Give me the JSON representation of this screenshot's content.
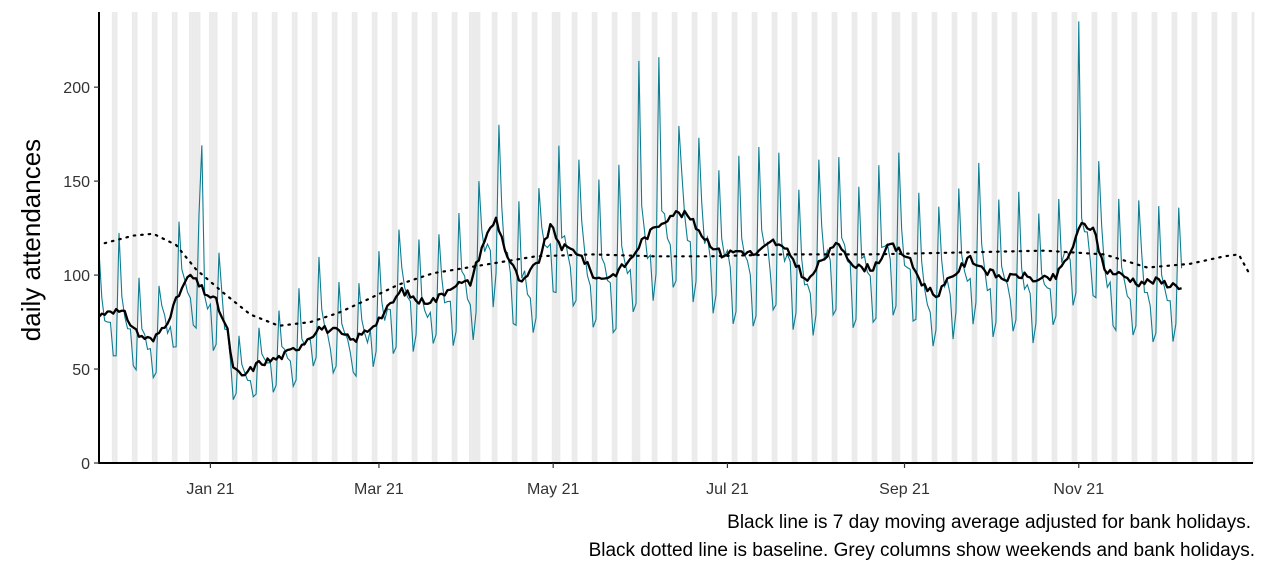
{
  "chart_data": {
    "type": "line",
    "ylabel": "daily attendances",
    "xlabel": "",
    "ylim": [
      0,
      240
    ],
    "yticks": [
      0,
      50,
      100,
      150,
      200
    ],
    "x_range": [
      "2020-11-23",
      "2022-01-01"
    ],
    "xticks": [
      {
        "date": "2021-01-01",
        "label": "Jan 21"
      },
      {
        "date": "2021-03-01",
        "label": "Mar 21"
      },
      {
        "date": "2021-05-01",
        "label": "May 21"
      },
      {
        "date": "2021-07-01",
        "label": "Jul 21"
      },
      {
        "date": "2021-09-01",
        "label": "Sep 21"
      },
      {
        "date": "2021-11-01",
        "label": "Nov 21"
      }
    ],
    "bank_holidays": [
      "2020-12-25",
      "2020-12-28",
      "2021-01-01",
      "2021-04-02",
      "2021-04-05",
      "2021-05-03",
      "2021-05-31",
      "2021-08-30"
    ],
    "series": [
      {
        "role": "daily attendances",
        "color": "#0e7c91",
        "start": "2020-11-23",
        "end": "2021-12-07",
        "weekday_profile": [
          1.45,
          1.1,
          1.0,
          0.96,
          0.92,
          0.7,
          0.75
        ],
        "spikes": [
          {
            "date": "2020-12-29",
            "value": 169
          },
          {
            "date": "2021-11-01",
            "value": 235
          },
          {
            "date": "2021-06-07",
            "value": 216
          },
          {
            "date": "2021-05-31",
            "value": 214
          }
        ]
      },
      {
        "role": "7 day moving average adjusted for bank holidays",
        "color": "#000000",
        "start": "2020-11-23",
        "end": "2021-12-07",
        "points": [
          [
            "2020-11-23",
            78
          ],
          [
            "2020-11-27",
            82
          ],
          [
            "2020-12-02",
            79
          ],
          [
            "2020-12-07",
            68
          ],
          [
            "2020-12-12",
            65
          ],
          [
            "2020-12-17",
            76
          ],
          [
            "2020-12-22",
            93
          ],
          [
            "2020-12-25",
            100
          ],
          [
            "2020-12-30",
            91
          ],
          [
            "2021-01-03",
            86
          ],
          [
            "2021-01-07",
            70
          ],
          [
            "2021-01-09",
            50
          ],
          [
            "2021-01-12",
            46
          ],
          [
            "2021-01-18",
            53
          ],
          [
            "2021-01-25",
            56
          ],
          [
            "2021-02-01",
            62
          ],
          [
            "2021-02-08",
            72
          ],
          [
            "2021-02-14",
            70
          ],
          [
            "2021-02-20",
            65
          ],
          [
            "2021-02-26",
            72
          ],
          [
            "2021-03-03",
            80
          ],
          [
            "2021-03-09",
            92
          ],
          [
            "2021-03-15",
            86
          ],
          [
            "2021-03-21",
            87
          ],
          [
            "2021-03-27",
            95
          ],
          [
            "2021-04-02",
            96
          ],
          [
            "2021-04-07",
            119
          ],
          [
            "2021-04-11",
            130
          ],
          [
            "2021-04-15",
            110
          ],
          [
            "2021-04-20",
            95
          ],
          [
            "2021-04-26",
            108
          ],
          [
            "2021-04-30",
            126
          ],
          [
            "2021-05-04",
            115
          ],
          [
            "2021-05-10",
            112
          ],
          [
            "2021-05-16",
            98
          ],
          [
            "2021-05-22",
            100
          ],
          [
            "2021-05-28",
            108
          ],
          [
            "2021-06-01",
            118
          ],
          [
            "2021-06-07",
            127
          ],
          [
            "2021-06-12",
            133
          ],
          [
            "2021-06-17",
            132
          ],
          [
            "2021-06-23",
            120
          ],
          [
            "2021-06-29",
            111
          ],
          [
            "2021-07-05",
            113
          ],
          [
            "2021-07-11",
            111
          ],
          [
            "2021-07-17",
            118
          ],
          [
            "2021-07-23",
            111
          ],
          [
            "2021-07-29",
            96
          ],
          [
            "2021-08-03",
            108
          ],
          [
            "2021-08-09",
            117
          ],
          [
            "2021-08-15",
            104
          ],
          [
            "2021-08-21",
            104
          ],
          [
            "2021-08-27",
            116
          ],
          [
            "2021-09-02",
            110
          ],
          [
            "2021-09-07",
            96
          ],
          [
            "2021-09-12",
            89
          ],
          [
            "2021-09-18",
            100
          ],
          [
            "2021-09-24",
            109
          ],
          [
            "2021-09-30",
            102
          ],
          [
            "2021-10-06",
            98
          ],
          [
            "2021-10-12",
            100
          ],
          [
            "2021-10-18",
            97
          ],
          [
            "2021-10-24",
            99
          ],
          [
            "2021-10-29",
            112
          ],
          [
            "2021-11-02",
            127
          ],
          [
            "2021-11-06",
            125
          ],
          [
            "2021-11-10",
            103
          ],
          [
            "2021-11-16",
            100
          ],
          [
            "2021-11-22",
            96
          ],
          [
            "2021-11-28",
            97
          ],
          [
            "2021-12-03",
            95
          ],
          [
            "2021-12-07",
            94
          ]
        ]
      },
      {
        "role": "baseline",
        "color": "#000000",
        "style": "dotted",
        "points": [
          [
            "2020-11-25",
            117
          ],
          [
            "2020-12-05",
            121
          ],
          [
            "2020-12-12",
            122
          ],
          [
            "2020-12-20",
            116
          ],
          [
            "2020-12-27",
            103
          ],
          [
            "2021-01-06",
            90
          ],
          [
            "2021-01-15",
            79
          ],
          [
            "2021-01-25",
            73
          ],
          [
            "2021-02-05",
            75
          ],
          [
            "2021-02-15",
            80
          ],
          [
            "2021-02-25",
            87
          ],
          [
            "2021-03-08",
            95
          ],
          [
            "2021-03-20",
            101
          ],
          [
            "2021-04-05",
            105
          ],
          [
            "2021-04-25",
            110
          ],
          [
            "2021-05-15",
            111
          ],
          [
            "2021-06-05",
            110
          ],
          [
            "2021-06-25",
            110
          ],
          [
            "2021-07-20",
            111
          ],
          [
            "2021-08-20",
            111
          ],
          [
            "2021-09-20",
            112
          ],
          [
            "2021-10-20",
            113
          ],
          [
            "2021-11-10",
            111
          ],
          [
            "2021-11-25",
            104
          ],
          [
            "2021-12-10",
            106
          ],
          [
            "2021-12-22",
            110
          ],
          [
            "2021-12-27",
            111
          ],
          [
            "2021-12-31",
            100
          ]
        ]
      }
    ],
    "annotations": [
      "Black line is 7 day moving average adjusted for bank holidays.",
      "Black dotted line is baseline. Grey columns show weekends and bank holidays."
    ],
    "grid": false,
    "legend": "none"
  }
}
